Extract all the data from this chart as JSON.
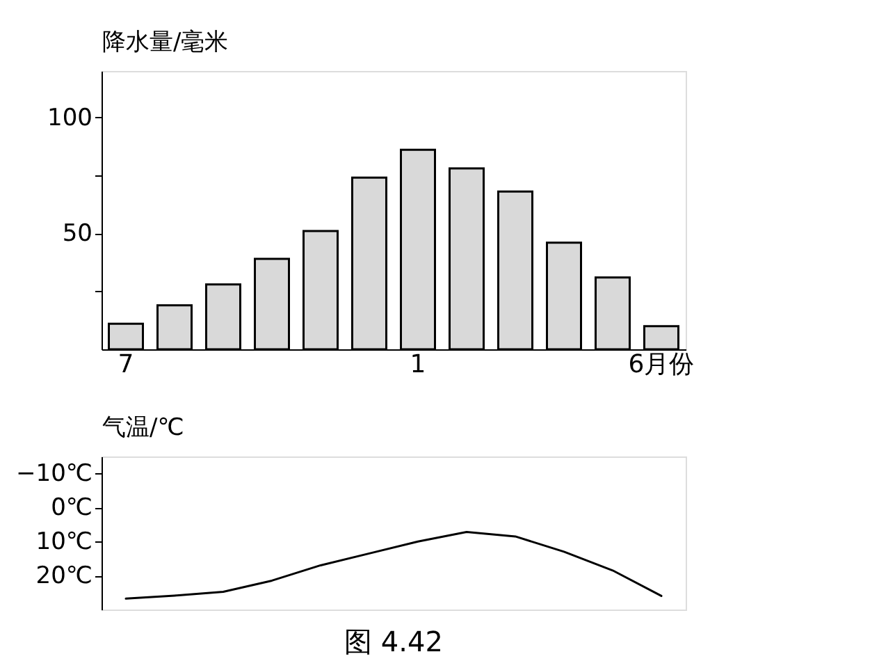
{
  "chart_data": [
    {
      "type": "bar",
      "ylabel": "降水量/毫米",
      "categories": [
        "7",
        null,
        null,
        null,
        null,
        null,
        "1",
        null,
        null,
        null,
        null,
        "6月份"
      ],
      "values": [
        11,
        19,
        28,
        39,
        51,
        74,
        86,
        78,
        68,
        46,
        31,
        10
      ],
      "color": "#d9d9d9",
      "ylim": [
        0,
        120
      ],
      "yticks": [
        {
          "value": 25,
          "label": null
        },
        50,
        {
          "value": 75,
          "label": null
        },
        100
      ],
      "grid": false
    },
    {
      "type": "line",
      "ylabel": "气温/℃",
      "categories": [
        null,
        null,
        null,
        null,
        null,
        null,
        null,
        null,
        null,
        null,
        null,
        null
      ],
      "values": [
        26.8,
        25.9,
        24.8,
        21.5,
        17,
        13.5,
        10,
        7.2,
        8.5,
        13,
        18.5,
        26
      ],
      "color": "#000000",
      "ylim": [
        30,
        -15
      ],
      "yticks": [
        {
          "value": -10,
          "label": "−10℃"
        },
        {
          "value": 0,
          "label": "0℃"
        },
        {
          "value": 10,
          "label": "10℃"
        },
        {
          "value": 20,
          "label": "20℃"
        }
      ],
      "tick_labels": "y",
      "marker": "none",
      "line_style": "solid",
      "grid": false,
      "annotations": [
        "图 4.42"
      ]
    }
  ]
}
